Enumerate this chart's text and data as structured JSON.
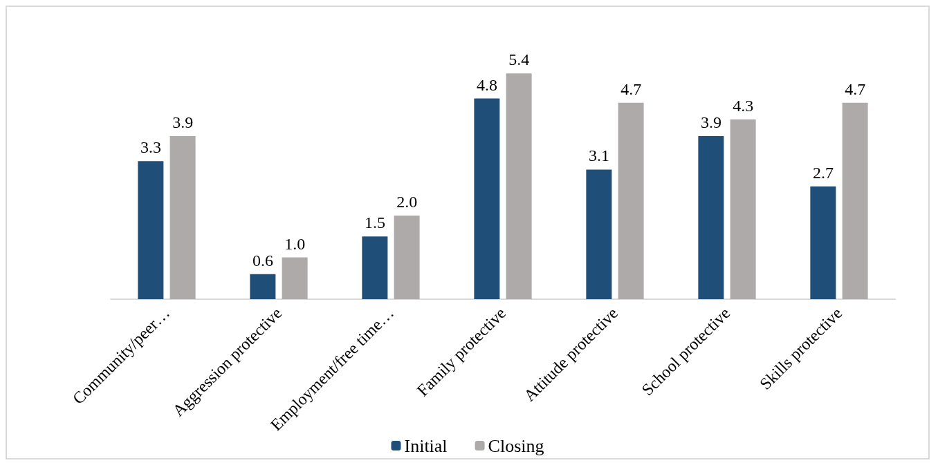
{
  "chart_data": {
    "type": "bar",
    "categories": [
      "Community/peer…",
      "Aggression protective",
      "Employment/free time…",
      "Family protective",
      "Attitude protective",
      "School protective",
      "Skills protective"
    ],
    "series": [
      {
        "name": "Initial",
        "color": "#1f4e79",
        "values": [
          3.3,
          0.6,
          1.5,
          4.8,
          3.1,
          3.9,
          2.7
        ],
        "value_labels": [
          "3.3",
          "0.6",
          "1.5",
          "4.8",
          "3.1",
          "3.9",
          "2.7"
        ]
      },
      {
        "name": "Closing",
        "color": "#aeaaaa",
        "values": [
          3.9,
          1.0,
          2.0,
          5.4,
          4.7,
          4.3,
          4.7
        ],
        "value_labels": [
          "3.9",
          "1.0",
          "2.0",
          "5.4",
          "4.7",
          "4.3",
          "4.7"
        ]
      }
    ],
    "legend": "bottom"
  }
}
